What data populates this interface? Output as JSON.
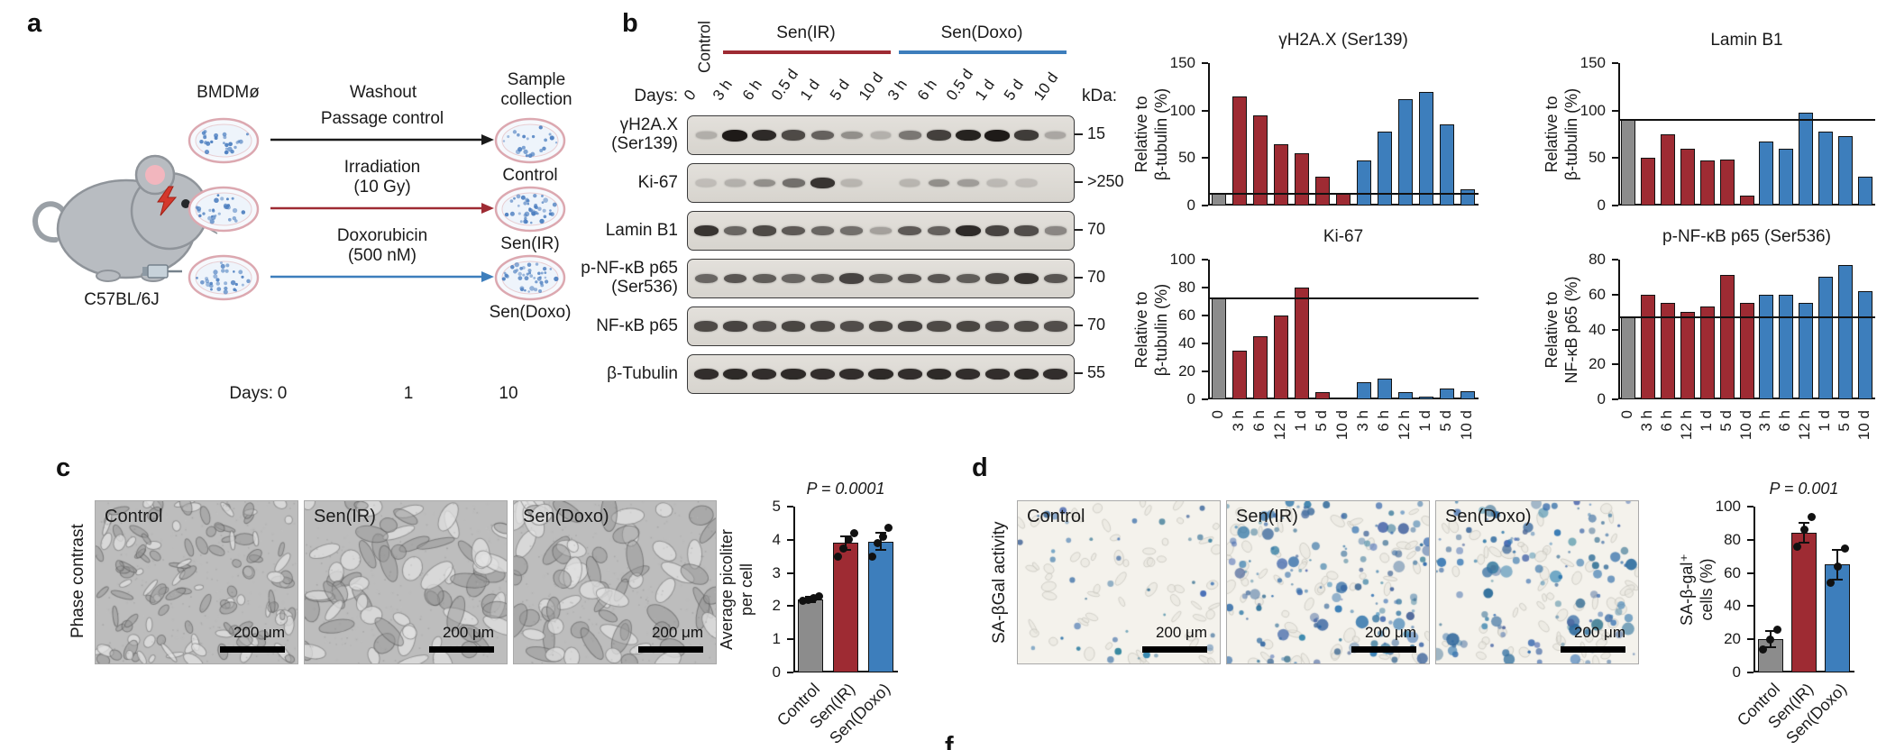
{
  "colors": {
    "red": "#9e2b33",
    "blue": "#3d7ebc",
    "gray": "#8c8c8c",
    "ink": "#1a1a1a"
  },
  "panel_a": {
    "label": "a",
    "strain": "C57BL/6J",
    "bmdm": "BMDMø",
    "washout": "Washout",
    "sample_collection": "Sample\ncollection",
    "days_label": "Days:",
    "days": [
      "0",
      "1",
      "10"
    ],
    "arms": [
      {
        "treatment": "Passage control",
        "result": "Control",
        "color": "ink"
      },
      {
        "treatment": "Irradiation\n(10 Gy)",
        "result": "Sen(IR)",
        "color": "red"
      },
      {
        "treatment": "Doxorubicin\n(500 nM)",
        "result": "Sen(Doxo)",
        "color": "blue"
      }
    ]
  },
  "panel_b": {
    "label": "b",
    "control_group": "Control",
    "groups": [
      {
        "name": "Sen(IR)",
        "color": "red"
      },
      {
        "name": "Sen(Doxo)",
        "color": "blue"
      }
    ],
    "days_label": "Days:",
    "kda_label": "kDa:",
    "lanes": [
      "0",
      "3 h",
      "6 h",
      "0.5 d",
      "1 d",
      "5 d",
      "10 d",
      "3 h",
      "6 h",
      "0.5 d",
      "1 d",
      "5 d",
      "10 d"
    ],
    "blots": [
      {
        "name": "γH2A.X\n(Ser139)",
        "kda": "15",
        "bands": [
          0.12,
          1.0,
          0.9,
          0.72,
          0.58,
          0.3,
          0.1,
          0.45,
          0.78,
          0.95,
          1.0,
          0.8,
          0.16
        ]
      },
      {
        "name": "Ki-67",
        "kda": ">250",
        "bands": [
          0.04,
          0.1,
          0.3,
          0.5,
          0.85,
          0.08,
          0.02,
          0.08,
          0.3,
          0.22,
          0.06,
          0.04,
          0.02
        ]
      },
      {
        "name": "Lamin B1",
        "kda": "70",
        "bands": [
          0.85,
          0.55,
          0.72,
          0.62,
          0.55,
          0.5,
          0.2,
          0.62,
          0.58,
          0.9,
          0.75,
          0.7,
          0.35
        ]
      },
      {
        "name": "p-NF-κB p65\n(Ser536)",
        "kda": "70",
        "bands": [
          0.55,
          0.65,
          0.6,
          0.55,
          0.6,
          0.75,
          0.6,
          0.65,
          0.65,
          0.6,
          0.72,
          0.85,
          0.65
        ]
      },
      {
        "name": "NF-κB p65",
        "kda": "70",
        "bands": [
          0.72,
          0.75,
          0.7,
          0.74,
          0.72,
          0.7,
          0.73,
          0.75,
          0.72,
          0.74,
          0.7,
          0.72,
          0.7
        ]
      },
      {
        "name": "β-Tubulin",
        "kda": "55",
        "bands": [
          0.88,
          0.9,
          0.88,
          0.9,
          0.88,
          0.88,
          0.9,
          0.88,
          0.9,
          0.88,
          0.88,
          0.9,
          0.88
        ]
      }
    ]
  },
  "chart_data": [
    {
      "type": "bar",
      "title": "γH2A.X (Ser139)",
      "ylabel": "Relative to\nβ-tubulin (%)",
      "ylim": [
        0,
        150
      ],
      "yticks": [
        0,
        50,
        100,
        150
      ],
      "categories": [
        "0",
        "3 h",
        "6 h",
        "12 h",
        "1 d",
        "5 d",
        "10 d",
        "3 h",
        "6 h",
        "12 h",
        "1 d",
        "5 d",
        "10 d"
      ],
      "values": [
        12,
        115,
        95,
        65,
        55,
        30,
        12,
        47,
        78,
        112,
        120,
        85,
        17
      ],
      "bar_colors": [
        "gray",
        "red",
        "red",
        "red",
        "red",
        "red",
        "red",
        "blue",
        "blue",
        "blue",
        "blue",
        "blue",
        "blue"
      ],
      "ref_line": 12,
      "show_x_labels": false
    },
    {
      "type": "bar",
      "title": "Lamin B1",
      "ylabel": "Relative to\nβ-tubulin (%)",
      "ylim": [
        0,
        150
      ],
      "yticks": [
        0,
        50,
        100,
        150
      ],
      "categories": [
        "0",
        "3 h",
        "6 h",
        "12 h",
        "1 d",
        "5 d",
        "10 d",
        "3 h",
        "6 h",
        "12 h",
        "1 d",
        "5 d",
        "10 d"
      ],
      "values": [
        90,
        50,
        75,
        60,
        47,
        48,
        10,
        67,
        60,
        98,
        78,
        73,
        30
      ],
      "bar_colors": [
        "gray",
        "red",
        "red",
        "red",
        "red",
        "red",
        "red",
        "blue",
        "blue",
        "blue",
        "blue",
        "blue",
        "blue"
      ],
      "ref_line": 90,
      "show_x_labels": false
    },
    {
      "type": "bar",
      "title": "Ki-67",
      "ylabel": "Relative to\nβ-tubulin (%)",
      "ylim": [
        0,
        100
      ],
      "yticks": [
        0,
        20,
        40,
        60,
        80,
        100
      ],
      "categories": [
        "0",
        "3 h",
        "6 h",
        "12 h",
        "1 d",
        "5 d",
        "10 d",
        "3 h",
        "6 h",
        "12 h",
        "1 d",
        "5 d",
        "10 d"
      ],
      "values": [
        72,
        35,
        45,
        60,
        80,
        5,
        1,
        12,
        15,
        5,
        2,
        8,
        6
      ],
      "bar_colors": [
        "gray",
        "red",
        "red",
        "red",
        "red",
        "red",
        "red",
        "blue",
        "blue",
        "blue",
        "blue",
        "blue",
        "blue"
      ],
      "ref_line": 72,
      "show_x_labels": true
    },
    {
      "type": "bar",
      "title": "p-NF-κB p65 (Ser536)",
      "ylabel": "Relative to\nNF-κB p65 (%)",
      "ylim": [
        0,
        80
      ],
      "yticks": [
        0,
        20,
        40,
        60,
        80
      ],
      "categories": [
        "0",
        "3 h",
        "6 h",
        "12 h",
        "1 d",
        "5 d",
        "10 d",
        "3 h",
        "6 h",
        "12 h",
        "1 d",
        "5 d",
        "10 d"
      ],
      "values": [
        47,
        60,
        55,
        50,
        53,
        71,
        55,
        60,
        60,
        55,
        70,
        77,
        62
      ],
      "bar_colors": [
        "gray",
        "red",
        "red",
        "red",
        "red",
        "red",
        "red",
        "blue",
        "blue",
        "blue",
        "blue",
        "blue",
        "blue"
      ],
      "ref_line": 47,
      "show_x_labels": true
    },
    {
      "type": "bar",
      "title": "",
      "p_value": "P = 0.0001",
      "ylabel": "Average picoliter\nper cell",
      "ylim": [
        0,
        5
      ],
      "yticks": [
        0,
        1,
        2,
        3,
        4,
        5
      ],
      "categories": [
        "Control",
        "Sen(IR)",
        "Sen(Doxo)"
      ],
      "values": [
        2.2,
        3.9,
        3.95
      ],
      "bar_colors": [
        "gray",
        "red",
        "blue"
      ],
      "points": [
        [
          2.15,
          2.2,
          2.25,
          2.3
        ],
        [
          3.5,
          3.75,
          4.0,
          4.2
        ],
        [
          3.5,
          3.9,
          4.1,
          4.35
        ]
      ],
      "error": [
        0.08,
        0.2,
        0.25
      ],
      "show_x_labels": true
    },
    {
      "type": "bar",
      "title": "",
      "p_value": "P = 0.001",
      "ylabel": "SA-β-gal⁺\ncells (%)",
      "ylim": [
        0,
        100
      ],
      "yticks": [
        0,
        20,
        40,
        60,
        80,
        100
      ],
      "categories": [
        "Control",
        "Sen(IR)",
        "Sen(Doxo)"
      ],
      "values": [
        20,
        84,
        65
      ],
      "bar_colors": [
        "gray",
        "red",
        "blue"
      ],
      "points": [
        [
          14,
          20,
          26
        ],
        [
          76,
          86,
          94
        ],
        [
          54,
          64,
          75
        ]
      ],
      "error": [
        5,
        6,
        9
      ],
      "show_x_labels": true
    }
  ],
  "panel_c": {
    "label": "c",
    "row_label": "Phase contrast",
    "images": [
      {
        "title": "Control",
        "scale": "200 μm"
      },
      {
        "title": "Sen(IR)",
        "scale": "200 μm"
      },
      {
        "title": "Sen(Doxo)",
        "scale": "200 μm"
      }
    ]
  },
  "panel_d": {
    "label": "d",
    "row_label": "SA-βGal activity",
    "images": [
      {
        "title": "Control",
        "scale": "200 μm"
      },
      {
        "title": "Sen(IR)",
        "scale": "200 μm"
      },
      {
        "title": "Sen(Doxo)",
        "scale": "200 μm"
      }
    ]
  },
  "partial_label": "f"
}
